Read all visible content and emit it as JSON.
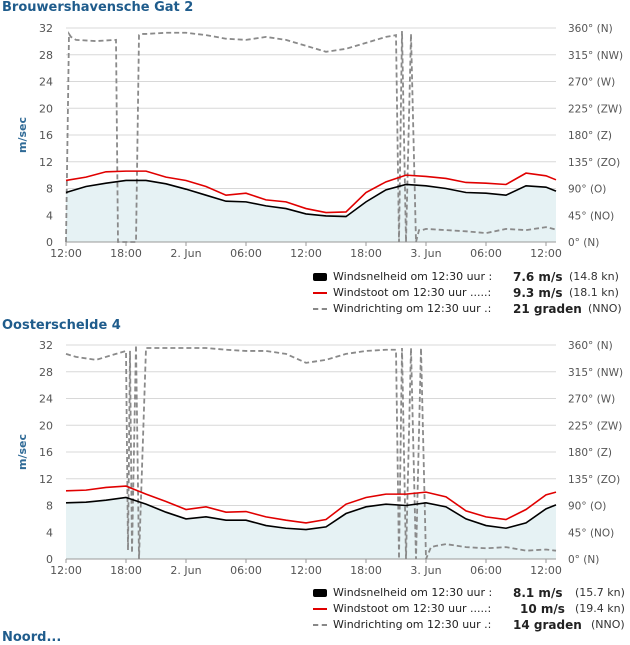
{
  "stations": [
    {
      "title": "Brouwershavensche Gat 2",
      "y_label": "m/sec",
      "x_ticks": [
        "12:00",
        "18:00",
        "2. Jun",
        "06:00",
        "12:00",
        "18:00",
        "3. Jun",
        "06:00",
        "12:00"
      ],
      "y_ticks_left": [
        "0",
        "4",
        "8",
        "12",
        "16",
        "20",
        "24",
        "28",
        "32"
      ],
      "y_ticks_right": [
        "0° (N)",
        "45° (NO)",
        "90° (O)",
        "135° (ZO)",
        "180° (Z)",
        "225° (ZW)",
        "270° (W)",
        "315° (NW)",
        "360° (N)"
      ],
      "legend": [
        {
          "label": "Windsnelheid om 12:30 uur :",
          "value": "7.6 m/s",
          "extra": "(14.8 kn)"
        },
        {
          "label": "Windstoot om 12:30 uur .....:",
          "value": "9.3 m/s",
          "extra": "(18.1 kn)"
        },
        {
          "label": "Windrichting om 12:30 uur .:",
          "value": "21 graden",
          "extra": "(NNO)"
        }
      ],
      "chart_data": {
        "type": "line",
        "x_range_hours": [
          0,
          49
        ],
        "ylim_left": [
          0,
          32
        ],
        "ylim_right_degrees": [
          0,
          360
        ],
        "series": [
          {
            "name": "Windsnelheid",
            "unit": "m/s",
            "x": [
              0,
              2,
              4,
              6,
              8,
              10,
              12,
              14,
              16,
              18,
              20,
              22,
              24,
              26,
              28,
              30,
              32,
              34,
              36,
              38,
              40,
              42,
              44,
              46,
              48,
              49
            ],
            "values": [
              7.4,
              8.3,
              8.8,
              9.2,
              9.2,
              8.7,
              7.9,
              7.0,
              6.1,
              6.0,
              5.4,
              5.0,
              4.2,
              3.9,
              3.8,
              6.0,
              7.8,
              8.6,
              8.4,
              8.0,
              7.4,
              7.3,
              7.0,
              8.4,
              8.2,
              7.6
            ]
          },
          {
            "name": "Windstoot",
            "unit": "m/s",
            "x": [
              0,
              2,
              4,
              6,
              8,
              10,
              12,
              14,
              16,
              18,
              20,
              22,
              24,
              26,
              28,
              30,
              32,
              34,
              36,
              38,
              40,
              42,
              44,
              46,
              48,
              49
            ],
            "values": [
              9.2,
              9.7,
              10.5,
              10.6,
              10.6,
              9.7,
              9.2,
              8.3,
              7.0,
              7.3,
              6.3,
              6.0,
              5.0,
              4.4,
              4.5,
              7.4,
              9.0,
              10.0,
              9.8,
              9.5,
              8.9,
              8.8,
              8.6,
              10.3,
              9.9,
              9.3
            ]
          },
          {
            "name": "Windrichting",
            "unit": "degrees",
            "x": [
              0,
              0.3,
              0.5,
              1,
              3,
              5,
              5.2,
              5.5,
              7,
              7.3,
              7.6,
              8,
              10,
              12,
              14,
              16,
              18,
              20,
              22,
              24,
              26,
              28,
              30,
              32,
              33,
              33.3,
              33.6,
              34,
              34.5,
              35,
              35.3,
              35.6,
              36,
              38,
              40,
              42,
              44,
              46,
              48,
              49
            ],
            "values": [
              0,
              350,
              345,
              340,
              338,
              340,
              0,
              0,
              0,
              348,
              350,
              350,
              352,
              352,
              348,
              342,
              340,
              345,
              340,
              330,
              320,
              325,
              335,
              345,
              348,
              0,
              355,
              0,
              350,
              0,
              20,
              20,
              22,
              20,
              18,
              15,
              22,
              20,
              25,
              21
            ]
          }
        ]
      }
    },
    {
      "title": "Oosterschelde 4",
      "y_label": "m/sec",
      "x_ticks": [
        "12:00",
        "18:00",
        "2. Jun",
        "06:00",
        "12:00",
        "18:00",
        "3. Jun",
        "06:00",
        "12:00"
      ],
      "y_ticks_left": [
        "0",
        "4",
        "8",
        "12",
        "16",
        "20",
        "24",
        "28",
        "32"
      ],
      "y_ticks_right": [
        "0° (N)",
        "45° (NO)",
        "90° (O)",
        "135° (ZO)",
        "180° (Z)",
        "225° (ZW)",
        "270° (W)",
        "315° (NW)",
        "360° (N)"
      ],
      "legend": [
        {
          "label": "Windsnelheid om 12:30 uur :",
          "value": "8.1 m/s",
          "extra": "(15.7 kn)"
        },
        {
          "label": "Windstoot om 12:30 uur .....:",
          "value": "10 m/s",
          "extra": "(19.4 kn)"
        },
        {
          "label": "Windrichting om 12:30 uur .:",
          "value": "14 graden",
          "extra": "(NNO)"
        }
      ],
      "chart_data": {
        "type": "line",
        "x_range_hours": [
          0,
          49
        ],
        "ylim_left": [
          0,
          32
        ],
        "ylim_right_degrees": [
          0,
          360
        ],
        "series": [
          {
            "name": "Windsnelheid",
            "unit": "m/s",
            "x": [
              0,
              2,
              4,
              6,
              8,
              10,
              12,
              14,
              16,
              18,
              20,
              22,
              24,
              26,
              28,
              30,
              32,
              34,
              36,
              38,
              40,
              42,
              44,
              46,
              48,
              49
            ],
            "values": [
              8.4,
              8.5,
              8.8,
              9.2,
              8.2,
              7.0,
              6.0,
              6.3,
              5.8,
              5.8,
              5.0,
              4.6,
              4.4,
              4.8,
              6.8,
              7.8,
              8.2,
              8.0,
              8.4,
              7.8,
              6.0,
              5.0,
              4.6,
              5.4,
              7.5,
              8.1
            ]
          },
          {
            "name": "Windstoot",
            "unit": "m/s",
            "x": [
              0,
              2,
              4,
              6,
              8,
              10,
              12,
              14,
              16,
              18,
              20,
              22,
              24,
              26,
              28,
              30,
              32,
              34,
              36,
              38,
              40,
              42,
              44,
              46,
              48,
              49
            ],
            "values": [
              10.2,
              10.3,
              10.7,
              10.9,
              9.7,
              8.6,
              7.4,
              7.8,
              7.0,
              7.1,
              6.3,
              5.8,
              5.4,
              5.9,
              8.2,
              9.2,
              9.7,
              9.7,
              10.0,
              9.3,
              7.2,
              6.3,
              5.9,
              7.4,
              9.6,
              10.0
            ]
          },
          {
            "name": "Windrichting",
            "unit": "degrees",
            "x": [
              0,
              1,
              3,
              5,
              6,
              6.2,
              6.4,
              6.6,
              7,
              7.3,
              8,
              10,
              12,
              14,
              16,
              18,
              20,
              22,
              24,
              26,
              28,
              30,
              32,
              33,
              33.3,
              33.6,
              34,
              34.5,
              35,
              35.5,
              36,
              36.5,
              37,
              38,
              40,
              42,
              44,
              46,
              48,
              49
            ],
            "values": [
              345,
              340,
              335,
              345,
              350,
              15,
              350,
              10,
              360,
              0,
              355,
              355,
              355,
              355,
              352,
              350,
              350,
              345,
              330,
              335,
              345,
              350,
              352,
              352,
              0,
              355,
              0,
              355,
              0,
              355,
              0,
              20,
              22,
              25,
              20,
              18,
              20,
              14,
              16,
              14
            ]
          }
        ]
      }
    }
  ],
  "footer_stub": "Noord..."
}
